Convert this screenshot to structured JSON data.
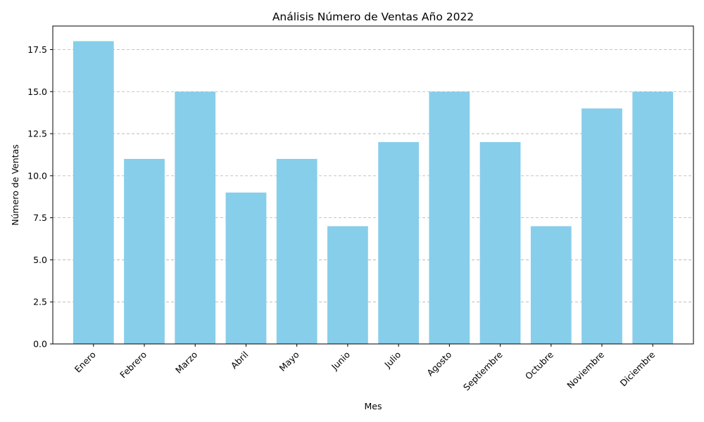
{
  "chart_data": {
    "type": "bar",
    "title": "Análisis Número de Ventas Año 2022",
    "xlabel": "Mes",
    "ylabel": "Número de Ventas",
    "categories": [
      "Enero",
      "Febrero",
      "Marzo",
      "Abril",
      "Mayo",
      "Junio",
      "Julio",
      "Agosto",
      "Septiembre",
      "Octubre",
      "Noviembre",
      "Diciembre"
    ],
    "values": [
      18,
      11,
      15,
      9,
      11,
      7,
      12,
      15,
      12,
      7,
      14,
      15
    ],
    "ylim": [
      0,
      18.9
    ],
    "yticks": [
      0,
      2.5,
      5,
      7.5,
      10,
      12.5,
      15,
      17.5
    ],
    "ytick_labels": [
      "0.0",
      "2.5",
      "5.0",
      "7.5",
      "10.0",
      "12.5",
      "15.0",
      "17.5"
    ],
    "grid": "y-dashed",
    "bar_color": "#87ceeb",
    "xtick_rotation_deg": 45
  }
}
